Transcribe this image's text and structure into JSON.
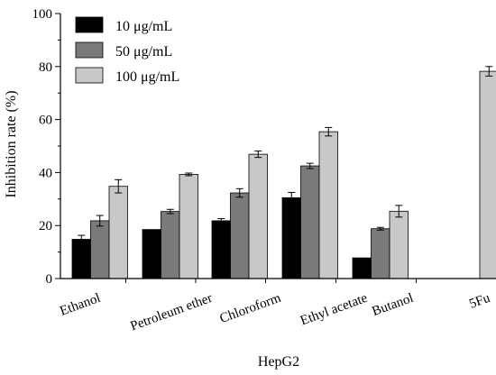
{
  "chart_data": {
    "type": "bar",
    "xlabel": "HepG2",
    "ylabel": "Inhibition rate (%)",
    "ylim": [
      0,
      100
    ],
    "yticks": [
      0,
      20,
      40,
      60,
      80,
      100
    ],
    "grid": false,
    "legend_position": "top-left",
    "categories": [
      "Ethanol",
      "Petroleum ether",
      "Chloroform",
      "Ethyl acetate",
      "Butanol",
      "5Fu"
    ],
    "series": [
      {
        "name": "10 μg/mL",
        "color": "#000000",
        "values": [
          14.8,
          18.5,
          21.8,
          30.5,
          7.8,
          null
        ],
        "errors": [
          1.5,
          0,
          0.8,
          2.0,
          0,
          null
        ]
      },
      {
        "name": "50 μg/mL",
        "color": "#7a7a7a",
        "values": [
          21.8,
          25.3,
          32.3,
          42.5,
          18.8,
          null
        ],
        "errors": [
          2.0,
          0.8,
          1.6,
          1.0,
          0.5,
          null
        ]
      },
      {
        "name": "100 μg/mL",
        "color": "#c8c8c8",
        "values": [
          34.8,
          39.3,
          46.9,
          55.4,
          25.4,
          78.2
        ],
        "errors": [
          2.5,
          0.5,
          1.2,
          1.6,
          2.2,
          1.8
        ]
      }
    ]
  }
}
